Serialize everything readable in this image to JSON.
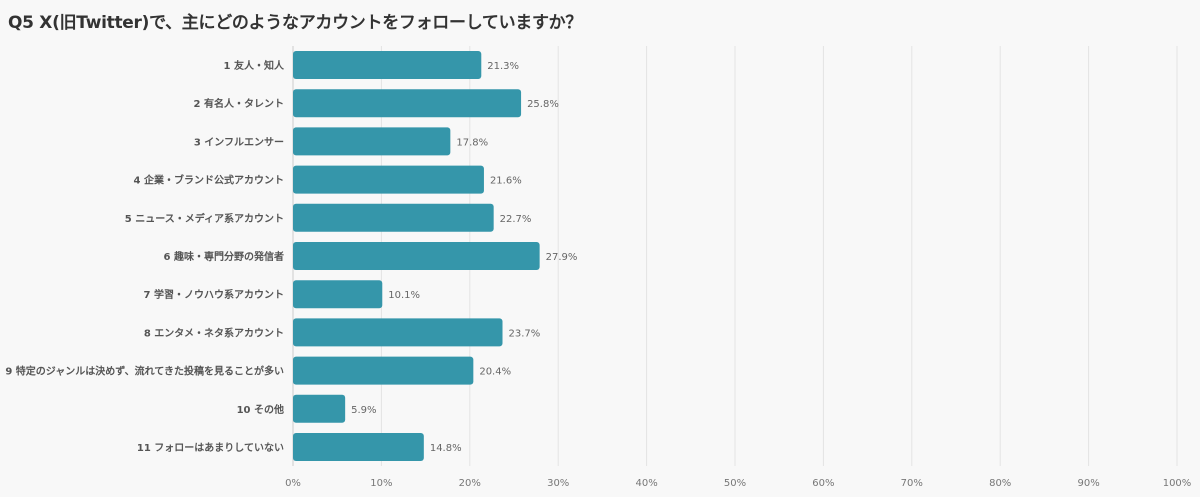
{
  "chart_data": {
    "type": "bar",
    "orientation": "horizontal",
    "title": "Q5 X(旧Twitter)で、主にどのようなアカウントをフォローしていますか？",
    "categories": [
      "1 友人・知人",
      "2 有名人・タレント",
      "3 インフルエンサー",
      "4 企業・ブランド公式アカウント",
      "5 ニュース・メディア系アカウント",
      "6 趣味・専門分野の発信者",
      "7 学習・ノウハウ系アカウント",
      "8 エンタメ・ネタ系アカウント",
      "9 特定のジャンルは決めず、流れてきた投稿を見ることが多い",
      "10 その他",
      "11 フォローはあまりしていない"
    ],
    "values": [
      21.3,
      25.8,
      17.8,
      21.6,
      22.7,
      27.9,
      10.1,
      23.7,
      20.4,
      5.9,
      14.8
    ],
    "value_labels": [
      "21.3%",
      "25.8%",
      "17.8%",
      "21.6%",
      "22.7%",
      "27.9%",
      "10.1%",
      "23.7%",
      "20.4%",
      "5.9%",
      "14.8%"
    ],
    "xlim": [
      0,
      100
    ],
    "xticks": [
      "0%",
      "10%",
      "20%",
      "30%",
      "40%",
      "50%",
      "60%",
      "70%",
      "80%",
      "90%",
      "100%"
    ],
    "grid": true,
    "color": "#3596aa"
  }
}
